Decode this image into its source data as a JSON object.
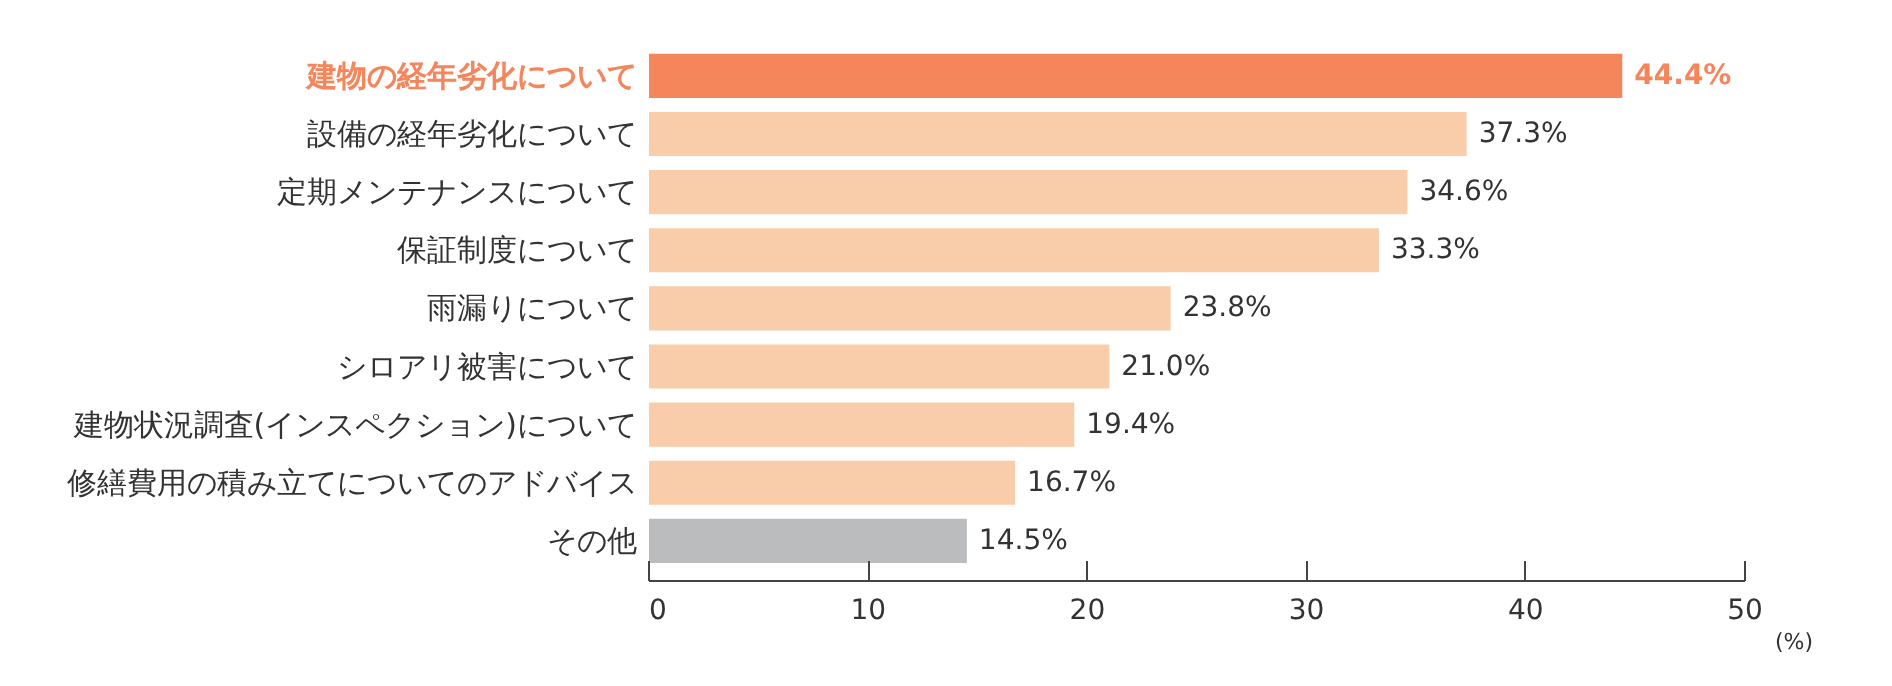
{
  "chart_data": {
    "type": "bar",
    "orientation": "horizontal",
    "categories": [
      "建物の経年劣化について",
      "設備の経年劣化について",
      "定期メンテナンスについて",
      "保証制度について",
      "雨漏りについて",
      "シロアリ被害について",
      "建物状況調査(インスペクション)について",
      "修繕費用の積み立てについてのアドバイス",
      "その他"
    ],
    "values": [
      44.4,
      37.3,
      34.6,
      33.3,
      23.8,
      21.0,
      19.4,
      16.7,
      14.5
    ],
    "colors": [
      "#f5855a",
      "#f9cdaa",
      "#f9cdaa",
      "#f9cdaa",
      "#f9cdaa",
      "#f9cdaa",
      "#f9cdaa",
      "#f9cdaa",
      "#bbbcbe"
    ],
    "value_labels": [
      "44.4%",
      "37.3%",
      "34.6%",
      "33.3%",
      "23.8%",
      "21.0%",
      "19.4%",
      "16.7%",
      "14.5%"
    ],
    "xlim": [
      0,
      50
    ],
    "xticks": [
      0,
      10,
      20,
      30,
      40,
      50
    ],
    "xlabel": "(%)",
    "grid": false
  }
}
